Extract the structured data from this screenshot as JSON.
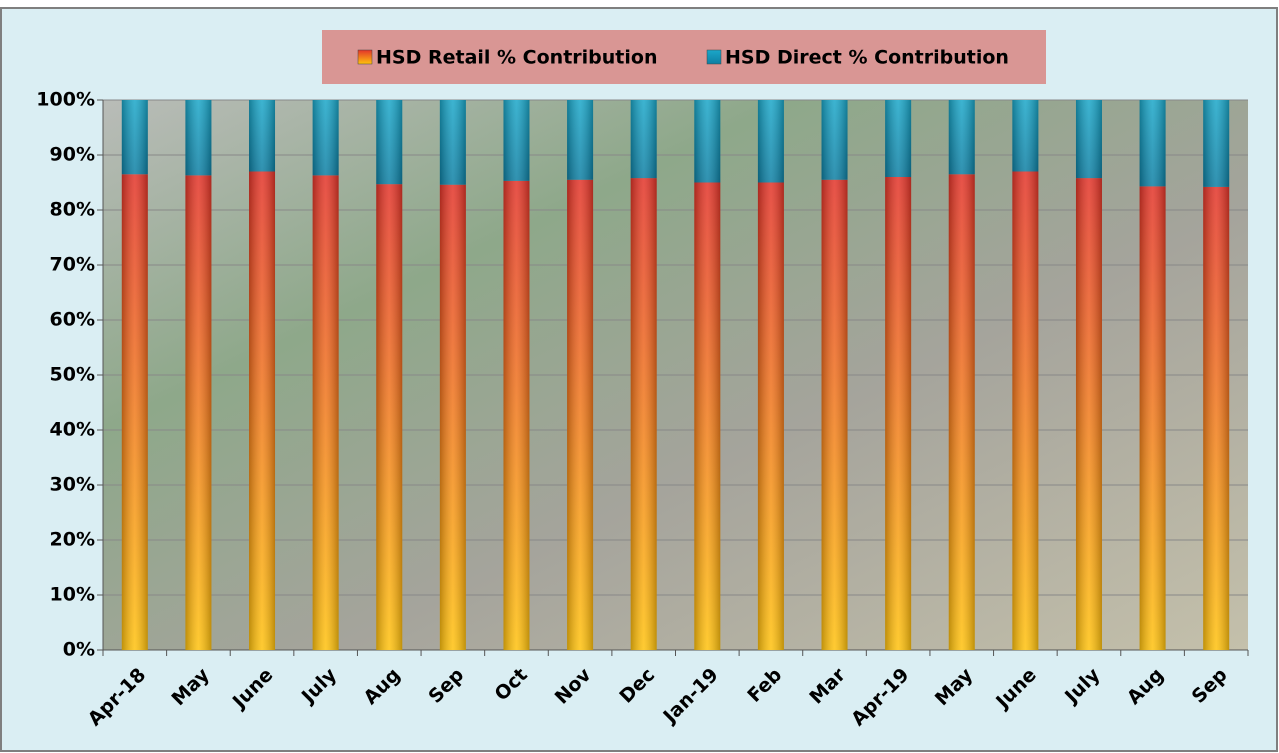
{
  "chart_data": {
    "type": "stacked_bar",
    "categories": [
      "Apr-18",
      "May",
      "June",
      "July",
      "Aug",
      "Sep",
      "Oct",
      "Nov",
      "Dec",
      "Jan-19",
      "Feb",
      "Mar",
      "Apr-19",
      "May",
      "June",
      "July",
      "Aug",
      "Sep"
    ],
    "series": [
      {
        "name": "HSD Retail % Contribution",
        "color": "#e3342a",
        "values": [
          86.5,
          86.3,
          87,
          86.3,
          84.7,
          84.6,
          85.3,
          85.5,
          85.8,
          85,
          85,
          85.5,
          86,
          86.5,
          87,
          85.8,
          84.3,
          84.2
        ]
      },
      {
        "name": "HSD Direct % Contribution",
        "color": "#1ba7c9",
        "values": [
          13.5,
          13.7,
          13,
          13.7,
          15.3,
          15.4,
          14.7,
          14.5,
          14.2,
          15,
          15,
          14.5,
          14,
          13.5,
          13,
          14.2,
          15.7,
          15.8
        ]
      }
    ],
    "ylim": [
      0,
      100
    ],
    "yticks": [
      {
        "value": 0,
        "label": "0%"
      },
      {
        "value": 10,
        "label": "10%"
      },
      {
        "value": 20,
        "label": "20%"
      },
      {
        "value": 30,
        "label": "30%"
      },
      {
        "value": 40,
        "label": "40%"
      },
      {
        "value": 50,
        "label": "50%"
      },
      {
        "value": 60,
        "label": "60%"
      },
      {
        "value": 70,
        "label": "70%"
      },
      {
        "value": 80,
        "label": "80%"
      },
      {
        "value": 90,
        "label": "90%"
      },
      {
        "value": 100,
        "label": "100%"
      }
    ],
    "grid": true,
    "legend": "top"
  }
}
